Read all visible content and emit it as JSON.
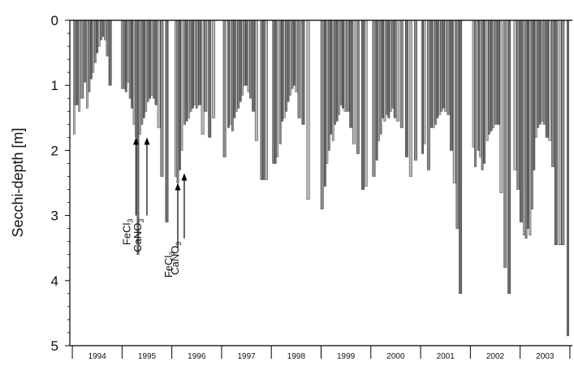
{
  "chart_data": {
    "type": "bar",
    "ylabel": "Secchi-depth [m]",
    "ylim": [
      5,
      0
    ],
    "y_ticks": [
      "0",
      "1",
      "2",
      "3",
      "4",
      "5"
    ],
    "y_tick_values": [
      0,
      1,
      2,
      3,
      4,
      5
    ],
    "year_labels": [
      "1994",
      "1995",
      "1996",
      "1997",
      "1998",
      "1999",
      "2000",
      "2001",
      "2002",
      "2003"
    ],
    "year_starts": [
      1994,
      1995,
      1996,
      1997,
      1998,
      1999,
      2000,
      2001,
      2002,
      2003,
      2004
    ],
    "x_range": [
      1993.95,
      2004.05
    ],
    "series": [
      {
        "values": [
          {
            "x": 1994.04,
            "y": 1.75
          },
          {
            "x": 1994.06,
            "y": 1.3
          },
          {
            "x": 1994.1,
            "y": 1.3
          },
          {
            "x": 1994.14,
            "y": 1.4
          },
          {
            "x": 1994.2,
            "y": 1.2
          },
          {
            "x": 1994.26,
            "y": 0.95
          },
          {
            "x": 1994.3,
            "y": 1.35
          },
          {
            "x": 1994.34,
            "y": 1.1
          },
          {
            "x": 1994.38,
            "y": 0.9
          },
          {
            "x": 1994.42,
            "y": 0.8
          },
          {
            "x": 1994.46,
            "y": 0.65
          },
          {
            "x": 1994.5,
            "y": 0.5
          },
          {
            "x": 1994.54,
            "y": 0.4
          },
          {
            "x": 1994.58,
            "y": 0.3
          },
          {
            "x": 1994.62,
            "y": 0.25
          },
          {
            "x": 1994.66,
            "y": 0.3
          },
          {
            "x": 1994.7,
            "y": 0.55
          },
          {
            "x": 1994.76,
            "y": 1.0
          },
          {
            "x": 1995.0,
            "y": 1.05
          },
          {
            "x": 1995.04,
            "y": 1.05
          },
          {
            "x": 1995.08,
            "y": 1.1
          },
          {
            "x": 1995.12,
            "y": 0.95
          },
          {
            "x": 1995.16,
            "y": 1.2
          },
          {
            "x": 1995.2,
            "y": 1.35
          },
          {
            "x": 1995.24,
            "y": 1.6
          },
          {
            "x": 1995.28,
            "y": 1.8
          },
          {
            "x": 1995.32,
            "y": 3.6
          },
          {
            "x": 1995.36,
            "y": 1.75
          },
          {
            "x": 1995.4,
            "y": 1.6
          },
          {
            "x": 1995.44,
            "y": 1.5
          },
          {
            "x": 1995.48,
            "y": 1.4
          },
          {
            "x": 1995.52,
            "y": 1.25
          },
          {
            "x": 1995.56,
            "y": 1.2
          },
          {
            "x": 1995.6,
            "y": 1.15
          },
          {
            "x": 1995.64,
            "y": 1.2
          },
          {
            "x": 1995.68,
            "y": 1.3
          },
          {
            "x": 1995.74,
            "y": 1.65
          },
          {
            "x": 1995.8,
            "y": 2.4
          },
          {
            "x": 1995.9,
            "y": 3.1
          },
          {
            "x": 1996.08,
            "y": 2.4
          },
          {
            "x": 1996.12,
            "y": 2.5
          },
          {
            "x": 1996.16,
            "y": 2.3
          },
          {
            "x": 1996.2,
            "y": 2.0
          },
          {
            "x": 1996.26,
            "y": 1.6
          },
          {
            "x": 1996.3,
            "y": 1.55
          },
          {
            "x": 1996.34,
            "y": 1.5
          },
          {
            "x": 1996.38,
            "y": 1.4
          },
          {
            "x": 1996.42,
            "y": 1.35
          },
          {
            "x": 1996.46,
            "y": 1.3
          },
          {
            "x": 1996.5,
            "y": 1.35
          },
          {
            "x": 1996.56,
            "y": 1.3
          },
          {
            "x": 1996.62,
            "y": 1.75
          },
          {
            "x": 1996.68,
            "y": 1.4
          },
          {
            "x": 1996.76,
            "y": 1.8
          },
          {
            "x": 1996.84,
            "y": 1.5
          },
          {
            "x": 1997.06,
            "y": 2.1
          },
          {
            "x": 1997.14,
            "y": 1.65
          },
          {
            "x": 1997.18,
            "y": 1.6
          },
          {
            "x": 1997.22,
            "y": 1.7
          },
          {
            "x": 1997.26,
            "y": 1.5
          },
          {
            "x": 1997.3,
            "y": 1.4
          },
          {
            "x": 1997.34,
            "y": 1.35
          },
          {
            "x": 1997.38,
            "y": 1.25
          },
          {
            "x": 1997.42,
            "y": 1.15
          },
          {
            "x": 1997.46,
            "y": 1.0
          },
          {
            "x": 1997.5,
            "y": 1.0
          },
          {
            "x": 1997.54,
            "y": 1.1
          },
          {
            "x": 1997.58,
            "y": 1.2
          },
          {
            "x": 1997.64,
            "y": 1.4
          },
          {
            "x": 1997.7,
            "y": 1.85
          },
          {
            "x": 1997.8,
            "y": 2.45
          },
          {
            "x": 1997.84,
            "y": 2.45
          },
          {
            "x": 1997.9,
            "y": 2.45
          },
          {
            "x": 1998.04,
            "y": 2.2
          },
          {
            "x": 1998.08,
            "y": 2.2
          },
          {
            "x": 1998.12,
            "y": 2.1
          },
          {
            "x": 1998.18,
            "y": 1.9
          },
          {
            "x": 1998.22,
            "y": 1.55
          },
          {
            "x": 1998.26,
            "y": 1.5
          },
          {
            "x": 1998.3,
            "y": 1.4
          },
          {
            "x": 1998.34,
            "y": 1.25
          },
          {
            "x": 1998.38,
            "y": 1.15
          },
          {
            "x": 1998.42,
            "y": 1.05
          },
          {
            "x": 1998.46,
            "y": 1.0
          },
          {
            "x": 1998.5,
            "y": 1.1
          },
          {
            "x": 1998.56,
            "y": 1.5
          },
          {
            "x": 1998.64,
            "y": 1.6
          },
          {
            "x": 1998.74,
            "y": 2.75
          },
          {
            "x": 1999.02,
            "y": 2.9
          },
          {
            "x": 1999.08,
            "y": 2.55
          },
          {
            "x": 1999.12,
            "y": 2.2
          },
          {
            "x": 1999.16,
            "y": 2.0
          },
          {
            "x": 1999.2,
            "y": 1.75
          },
          {
            "x": 1999.24,
            "y": 1.85
          },
          {
            "x": 1999.28,
            "y": 1.6
          },
          {
            "x": 1999.32,
            "y": 1.55
          },
          {
            "x": 1999.36,
            "y": 1.45
          },
          {
            "x": 1999.4,
            "y": 1.3
          },
          {
            "x": 1999.44,
            "y": 1.35
          },
          {
            "x": 1999.48,
            "y": 1.4
          },
          {
            "x": 1999.54,
            "y": 1.4
          },
          {
            "x": 1999.6,
            "y": 1.65
          },
          {
            "x": 1999.66,
            "y": 1.9
          },
          {
            "x": 1999.74,
            "y": 2.05
          },
          {
            "x": 1999.84,
            "y": 2.6
          },
          {
            "x": 1999.9,
            "y": 2.55
          },
          {
            "x": 2000.06,
            "y": 2.4
          },
          {
            "x": 2000.12,
            "y": 2.15
          },
          {
            "x": 2000.16,
            "y": 1.85
          },
          {
            "x": 2000.2,
            "y": 1.75
          },
          {
            "x": 2000.24,
            "y": 1.5
          },
          {
            "x": 2000.28,
            "y": 1.55
          },
          {
            "x": 2000.32,
            "y": 1.45
          },
          {
            "x": 2000.36,
            "y": 1.5
          },
          {
            "x": 2000.4,
            "y": 1.4
          },
          {
            "x": 2000.44,
            "y": 1.35
          },
          {
            "x": 2000.48,
            "y": 1.5
          },
          {
            "x": 2000.54,
            "y": 1.55
          },
          {
            "x": 2000.62,
            "y": 1.65
          },
          {
            "x": 2000.72,
            "y": 2.1
          },
          {
            "x": 2000.8,
            "y": 2.4
          },
          {
            "x": 2000.9,
            "y": 2.15
          },
          {
            "x": 2001.04,
            "y": 2.05
          },
          {
            "x": 2001.08,
            "y": 1.9
          },
          {
            "x": 2001.16,
            "y": 2.3
          },
          {
            "x": 2001.22,
            "y": 1.65
          },
          {
            "x": 2001.26,
            "y": 1.65
          },
          {
            "x": 2001.3,
            "y": 1.6
          },
          {
            "x": 2001.34,
            "y": 1.5
          },
          {
            "x": 2001.38,
            "y": 1.45
          },
          {
            "x": 2001.42,
            "y": 1.4
          },
          {
            "x": 2001.46,
            "y": 1.35
          },
          {
            "x": 2001.5,
            "y": 1.4
          },
          {
            "x": 2001.56,
            "y": 1.45
          },
          {
            "x": 2001.62,
            "y": 2.0
          },
          {
            "x": 2001.68,
            "y": 2.5
          },
          {
            "x": 2001.74,
            "y": 3.2
          },
          {
            "x": 2001.8,
            "y": 4.2
          },
          {
            "x": 2002.06,
            "y": 1.95
          },
          {
            "x": 2002.1,
            "y": 2.25
          },
          {
            "x": 2002.16,
            "y": 2.0
          },
          {
            "x": 2002.2,
            "y": 2.1
          },
          {
            "x": 2002.24,
            "y": 2.3
          },
          {
            "x": 2002.28,
            "y": 2.2
          },
          {
            "x": 2002.34,
            "y": 1.85
          },
          {
            "x": 2002.38,
            "y": 1.75
          },
          {
            "x": 2002.42,
            "y": 1.7
          },
          {
            "x": 2002.46,
            "y": 1.65
          },
          {
            "x": 2002.5,
            "y": 1.6
          },
          {
            "x": 2002.56,
            "y": 1.6
          },
          {
            "x": 2002.62,
            "y": 2.65
          },
          {
            "x": 2002.7,
            "y": 3.8
          },
          {
            "x": 2002.78,
            "y": 4.2
          },
          {
            "x": 2002.9,
            "y": 2.3
          },
          {
            "x": 2002.96,
            "y": 2.6
          },
          {
            "x": 2003.02,
            "y": 3.1
          },
          {
            "x": 2003.08,
            "y": 3.3
          },
          {
            "x": 2003.12,
            "y": 3.35
          },
          {
            "x": 2003.16,
            "y": 3.2
          },
          {
            "x": 2003.2,
            "y": 3.3
          },
          {
            "x": 2003.24,
            "y": 2.9
          },
          {
            "x": 2003.28,
            "y": 2.3
          },
          {
            "x": 2003.32,
            "y": 1.8
          },
          {
            "x": 2003.36,
            "y": 1.65
          },
          {
            "x": 2003.4,
            "y": 1.6
          },
          {
            "x": 2003.44,
            "y": 1.55
          },
          {
            "x": 2003.48,
            "y": 1.6
          },
          {
            "x": 2003.54,
            "y": 1.8
          },
          {
            "x": 2003.6,
            "y": 1.85
          },
          {
            "x": 2003.66,
            "y": 2.25
          },
          {
            "x": 2003.72,
            "y": 3.45
          },
          {
            "x": 2003.8,
            "y": 3.45
          },
          {
            "x": 2003.86,
            "y": 3.45
          },
          {
            "x": 2003.96,
            "y": 4.85
          }
        ]
      }
    ],
    "annotations": [
      {
        "text": "FeCl",
        "sub": "3",
        "x": 1995.28,
        "arrow_tip": 1.8,
        "arrow_tail": 3.0
      },
      {
        "text": "CaNO",
        "sub": "3",
        "x": 1995.5,
        "arrow_tip": 1.8,
        "arrow_tail": 3.0
      },
      {
        "text": "FeCl",
        "sub": "3",
        "x": 1996.12,
        "arrow_tip": 2.5,
        "arrow_tail": 3.5
      },
      {
        "text": "CaNO",
        "sub": "3",
        "x": 1996.25,
        "arrow_tip": 2.35,
        "arrow_tail": 3.35
      }
    ],
    "grid": false
  }
}
